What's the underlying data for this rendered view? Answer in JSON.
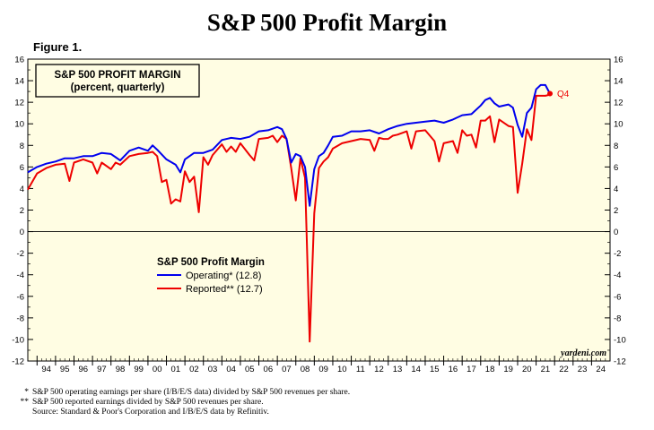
{
  "header": {
    "title": "S&P 500 Profit Margin",
    "figure_label": "Figure 1."
  },
  "chart_data": {
    "type": "line",
    "title": "S&P 500 PROFIT MARGIN",
    "subtitle": "(percent, quarterly)",
    "ylim": [
      -12,
      16
    ],
    "y_ticks": [
      -12,
      -10,
      -8,
      -6,
      -4,
      -2,
      0,
      2,
      4,
      6,
      8,
      10,
      12,
      14,
      16
    ],
    "x_range": [
      1993.5,
      2025.0
    ],
    "x_tick_labels": [
      "94",
      "95",
      "96",
      "97",
      "98",
      "99",
      "00",
      "01",
      "02",
      "03",
      "04",
      "05",
      "06",
      "07",
      "08",
      "09",
      "10",
      "11",
      "12",
      "13",
      "14",
      "15",
      "16",
      "17",
      "18",
      "19",
      "20",
      "21",
      "22",
      "23",
      "24"
    ],
    "x_tick_years": [
      1994,
      1995,
      1996,
      1997,
      1998,
      1999,
      2000,
      2001,
      2002,
      2003,
      2004,
      2005,
      2006,
      2007,
      2008,
      2009,
      2010,
      2011,
      2012,
      2013,
      2014,
      2015,
      2016,
      2017,
      2018,
      2019,
      2020,
      2021,
      2022,
      2023,
      2024
    ],
    "plot_background": "#fffde3",
    "zero_line": true,
    "legend": {
      "title": "S&P 500 Profit Margin",
      "position": "center-left",
      "entries": [
        "Operating* (12.8)",
        "Reported** (12.7)"
      ]
    },
    "annotations": {
      "last_point_label": "Q4",
      "source_credit": "yardeni.com"
    },
    "series": [
      {
        "name": "Operating* (12.8)",
        "color": "#0000ee",
        "points": [
          [
            1993.5,
            5.5
          ],
          [
            1994.0,
            6.0
          ],
          [
            1994.5,
            6.3
          ],
          [
            1995.0,
            6.5
          ],
          [
            1995.5,
            6.8
          ],
          [
            1996.0,
            6.8
          ],
          [
            1996.5,
            7.0
          ],
          [
            1997.0,
            7.0
          ],
          [
            1997.5,
            7.3
          ],
          [
            1998.0,
            7.2
          ],
          [
            1998.25,
            6.9
          ],
          [
            1998.5,
            6.6
          ],
          [
            1999.0,
            7.5
          ],
          [
            1999.5,
            7.8
          ],
          [
            2000.0,
            7.5
          ],
          [
            2000.25,
            8.0
          ],
          [
            2000.5,
            7.6
          ],
          [
            2001.0,
            6.7
          ],
          [
            2001.5,
            6.2
          ],
          [
            2001.75,
            5.5
          ],
          [
            2002.0,
            6.7
          ],
          [
            2002.5,
            7.3
          ],
          [
            2003.0,
            7.3
          ],
          [
            2003.5,
            7.6
          ],
          [
            2004.0,
            8.5
          ],
          [
            2004.5,
            8.7
          ],
          [
            2005.0,
            8.6
          ],
          [
            2005.5,
            8.8
          ],
          [
            2006.0,
            9.3
          ],
          [
            2006.5,
            9.4
          ],
          [
            2007.0,
            9.7
          ],
          [
            2007.25,
            9.5
          ],
          [
            2007.5,
            8.6
          ],
          [
            2007.75,
            6.4
          ],
          [
            2008.0,
            7.2
          ],
          [
            2008.25,
            7.0
          ],
          [
            2008.5,
            6.0
          ],
          [
            2008.75,
            2.4
          ],
          [
            2009.0,
            5.8
          ],
          [
            2009.25,
            7.0
          ],
          [
            2009.5,
            7.3
          ],
          [
            2009.75,
            8.0
          ],
          [
            2010.0,
            8.8
          ],
          [
            2010.5,
            8.9
          ],
          [
            2011.0,
            9.3
          ],
          [
            2011.5,
            9.3
          ],
          [
            2012.0,
            9.4
          ],
          [
            2012.5,
            9.1
          ],
          [
            2013.0,
            9.5
          ],
          [
            2013.5,
            9.8
          ],
          [
            2014.0,
            10.0
          ],
          [
            2014.5,
            10.1
          ],
          [
            2015.0,
            10.2
          ],
          [
            2015.5,
            10.3
          ],
          [
            2016.0,
            10.1
          ],
          [
            2016.5,
            10.4
          ],
          [
            2017.0,
            10.8
          ],
          [
            2017.5,
            10.9
          ],
          [
            2018.0,
            11.7
          ],
          [
            2018.25,
            12.2
          ],
          [
            2018.5,
            12.4
          ],
          [
            2018.75,
            11.9
          ],
          [
            2019.0,
            11.6
          ],
          [
            2019.5,
            11.8
          ],
          [
            2019.75,
            11.5
          ],
          [
            2020.0,
            9.9
          ],
          [
            2020.25,
            8.8
          ],
          [
            2020.5,
            11.0
          ],
          [
            2020.75,
            11.5
          ],
          [
            2021.0,
            13.2
          ],
          [
            2021.25,
            13.6
          ],
          [
            2021.5,
            13.6
          ],
          [
            2021.75,
            12.8
          ]
        ]
      },
      {
        "name": "Reported** (12.7)",
        "color": "#ee0000",
        "points": [
          [
            1993.5,
            3.9
          ],
          [
            1994.0,
            5.4
          ],
          [
            1994.5,
            5.9
          ],
          [
            1995.0,
            6.2
          ],
          [
            1995.5,
            6.3
          ],
          [
            1995.75,
            4.7
          ],
          [
            1996.0,
            6.4
          ],
          [
            1996.5,
            6.7
          ],
          [
            1997.0,
            6.4
          ],
          [
            1997.25,
            5.4
          ],
          [
            1997.5,
            6.4
          ],
          [
            1998.0,
            5.8
          ],
          [
            1998.25,
            6.4
          ],
          [
            1998.5,
            6.2
          ],
          [
            1999.0,
            7.0
          ],
          [
            1999.5,
            7.2
          ],
          [
            2000.0,
            7.3
          ],
          [
            2000.25,
            7.4
          ],
          [
            2000.5,
            7.0
          ],
          [
            2000.75,
            4.6
          ],
          [
            2001.0,
            4.8
          ],
          [
            2001.25,
            2.6
          ],
          [
            2001.5,
            3.0
          ],
          [
            2001.75,
            2.8
          ],
          [
            2002.0,
            5.6
          ],
          [
            2002.25,
            4.6
          ],
          [
            2002.5,
            5.1
          ],
          [
            2002.75,
            1.8
          ],
          [
            2003.0,
            6.9
          ],
          [
            2003.25,
            6.2
          ],
          [
            2003.5,
            7.1
          ],
          [
            2004.0,
            8.1
          ],
          [
            2004.25,
            7.4
          ],
          [
            2004.5,
            7.9
          ],
          [
            2004.75,
            7.4
          ],
          [
            2005.0,
            8.2
          ],
          [
            2005.5,
            7.1
          ],
          [
            2005.75,
            6.6
          ],
          [
            2006.0,
            8.6
          ],
          [
            2006.5,
            8.7
          ],
          [
            2006.75,
            8.9
          ],
          [
            2007.0,
            8.3
          ],
          [
            2007.25,
            8.9
          ],
          [
            2007.5,
            8.6
          ],
          [
            2007.75,
            5.9
          ],
          [
            2008.0,
            2.9
          ],
          [
            2008.25,
            6.8
          ],
          [
            2008.5,
            5.0
          ],
          [
            2008.75,
            -10.2
          ],
          [
            2009.0,
            1.7
          ],
          [
            2009.25,
            5.9
          ],
          [
            2009.5,
            6.5
          ],
          [
            2009.75,
            6.9
          ],
          [
            2010.0,
            7.7
          ],
          [
            2010.5,
            8.2
          ],
          [
            2011.0,
            8.4
          ],
          [
            2011.5,
            8.6
          ],
          [
            2012.0,
            8.5
          ],
          [
            2012.25,
            7.5
          ],
          [
            2012.5,
            8.7
          ],
          [
            2012.75,
            8.6
          ],
          [
            2013.0,
            8.6
          ],
          [
            2013.25,
            8.9
          ],
          [
            2013.5,
            9.0
          ],
          [
            2014.0,
            9.3
          ],
          [
            2014.25,
            7.7
          ],
          [
            2014.5,
            9.3
          ],
          [
            2015.0,
            9.4
          ],
          [
            2015.5,
            8.4
          ],
          [
            2015.75,
            6.5
          ],
          [
            2016.0,
            8.2
          ],
          [
            2016.5,
            8.4
          ],
          [
            2016.75,
            7.3
          ],
          [
            2017.0,
            9.4
          ],
          [
            2017.25,
            8.9
          ],
          [
            2017.5,
            9.0
          ],
          [
            2017.75,
            7.8
          ],
          [
            2018.0,
            10.3
          ],
          [
            2018.25,
            10.3
          ],
          [
            2018.5,
            10.7
          ],
          [
            2018.75,
            8.3
          ],
          [
            2019.0,
            10.4
          ],
          [
            2019.5,
            9.8
          ],
          [
            2019.75,
            9.7
          ],
          [
            2020.0,
            3.6
          ],
          [
            2020.25,
            6.3
          ],
          [
            2020.5,
            9.5
          ],
          [
            2020.75,
            8.5
          ],
          [
            2021.0,
            12.6
          ],
          [
            2021.5,
            12.6
          ],
          [
            2021.75,
            12.7
          ]
        ]
      }
    ]
  },
  "footnotes": [
    {
      "mark": "*",
      "text": "S&P 500 operating earnings per share (I/B/E/S data) divided by S&P 500 revenues per share."
    },
    {
      "mark": "**",
      "text": "S&P 500 reported earnings divided by S&P 500 revenues per share."
    },
    {
      "mark": "",
      "text": "Source: Standard & Poor's Corporation and I/B/E/S data by Refinitiv."
    }
  ]
}
